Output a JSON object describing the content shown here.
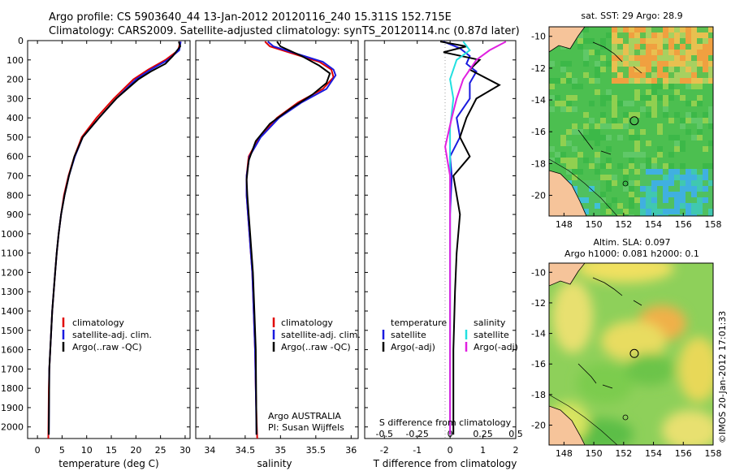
{
  "header": {
    "title_line1": "Argo profile: CS 5903640_44 13-Jan-2012 20120116_240 15.311S 152.715E",
    "title_line2": "Climatology: CARS2009. Satellite-adjusted climatology: synTS_20120114.nc (0.87d later)"
  },
  "watermark": "©IMOS 20-Jan-2012 17:01:33",
  "colors": {
    "climatology": "#e00000",
    "satellite": "#1a1adf",
    "argo": "#000000",
    "cyan": "#22e0e0",
    "magenta": "#e020e0",
    "land": "#f6c49a"
  },
  "chart_data": [
    {
      "type": "line",
      "id": "temperature",
      "xlabel": "temperature (deg C)",
      "xlim": [
        -2,
        31
      ],
      "xticks": [
        0,
        5,
        10,
        15,
        20,
        25,
        30
      ],
      "ylim": [
        0,
        2060
      ],
      "yticks": [
        0,
        100,
        200,
        300,
        400,
        500,
        600,
        700,
        800,
        900,
        1000,
        1100,
        1200,
        1300,
        1400,
        1500,
        1600,
        1700,
        1800,
        1900,
        2000
      ],
      "legend": [
        "climatology",
        "satellite-adj. clim.",
        "Argo(..raw -QC)"
      ],
      "series": [
        {
          "name": "climatology",
          "color": "#e00000",
          "x": [
            29.0,
            28.6,
            26.0,
            22.5,
            19.5,
            15.5,
            12.0,
            9.0,
            7.5,
            6.3,
            5.4,
            4.8,
            4.3,
            3.9,
            3.6,
            3.3,
            3.0,
            2.8,
            2.6,
            2.4,
            2.3,
            2.2
          ],
          "y": [
            5,
            50,
            100,
            150,
            200,
            300,
            400,
            500,
            600,
            700,
            800,
            900,
            1000,
            1100,
            1200,
            1300,
            1400,
            1500,
            1600,
            1700,
            1800,
            2060
          ]
        },
        {
          "name": "satellite-adj. clim.",
          "color": "#1a1adf",
          "x": [
            29.1,
            28.8,
            26.5,
            23.0,
            20.0,
            16.0,
            12.5,
            9.2,
            7.6,
            6.4,
            5.5,
            4.8,
            4.3,
            3.9,
            3.6,
            3.3,
            3.0,
            2.8,
            2.6,
            2.4,
            2.3
          ],
          "y": [
            5,
            50,
            100,
            150,
            200,
            300,
            400,
            500,
            600,
            700,
            800,
            900,
            1000,
            1100,
            1200,
            1300,
            1400,
            1500,
            1600,
            1700,
            2040
          ]
        },
        {
          "name": "Argo(..raw -QC)",
          "color": "#000000",
          "x": [
            28.7,
            29.0,
            27.5,
            26.0,
            23.0,
            20.5,
            16.0,
            12.5,
            9.2,
            7.5,
            6.4,
            5.5,
            4.8,
            4.3,
            3.9,
            3.6,
            3.3,
            3.0,
            2.8,
            2.6,
            2.4,
            2.3
          ],
          "y": [
            5,
            30,
            80,
            120,
            160,
            200,
            300,
            400,
            500,
            600,
            700,
            800,
            900,
            1000,
            1100,
            1200,
            1300,
            1400,
            1500,
            1600,
            1700,
            2040
          ]
        }
      ]
    },
    {
      "type": "line",
      "id": "salinity",
      "xlabel": "salinity",
      "xlim": [
        33.8,
        36.1
      ],
      "xticks": [
        34,
        34.5,
        35,
        35.5,
        36
      ],
      "ylim": [
        0,
        2060
      ],
      "legend": [
        "climatology",
        "satellite-adj. clim.",
        "Argo(..raw -QC)"
      ],
      "series": [
        {
          "name": "climatology",
          "color": "#e00000",
          "x": [
            34.78,
            34.85,
            35.2,
            35.55,
            35.72,
            35.75,
            35.6,
            35.25,
            34.95,
            34.7,
            34.55,
            34.52,
            34.52,
            34.54,
            34.56,
            34.58,
            34.6,
            34.62,
            34.64,
            34.65,
            34.66,
            34.67
          ],
          "y": [
            5,
            30,
            70,
            110,
            150,
            190,
            250,
            320,
            400,
            500,
            600,
            700,
            800,
            900,
            1000,
            1100,
            1200,
            1400,
            1600,
            1800,
            1950,
            2060
          ]
        },
        {
          "name": "satellite-adj. clim.",
          "color": "#1a1adf",
          "x": [
            34.82,
            34.9,
            35.25,
            35.6,
            35.75,
            35.78,
            35.65,
            35.3,
            34.98,
            34.72,
            34.56,
            34.52,
            34.52,
            34.54,
            34.56,
            34.58,
            34.6,
            34.62,
            34.64,
            34.65,
            34.66
          ],
          "y": [
            5,
            30,
            70,
            110,
            150,
            180,
            250,
            320,
            400,
            500,
            600,
            700,
            800,
            900,
            1000,
            1100,
            1200,
            1400,
            1600,
            1800,
            2040
          ]
        },
        {
          "name": "Argo(..raw -QC)",
          "color": "#000000",
          "x": [
            34.95,
            35.0,
            35.3,
            35.55,
            35.7,
            35.65,
            35.45,
            35.15,
            34.85,
            34.65,
            34.55,
            34.52,
            34.53,
            34.55,
            34.57,
            34.59,
            34.61,
            34.63,
            34.65,
            34.66
          ],
          "y": [
            5,
            30,
            80,
            130,
            170,
            220,
            280,
            350,
            430,
            520,
            620,
            720,
            800,
            900,
            1000,
            1100,
            1200,
            1400,
            1600,
            2040
          ]
        }
      ],
      "annotation_line1": "Argo AUSTRALIA",
      "annotation_line2": "PI: Susan Wijffels"
    },
    {
      "type": "line",
      "id": "difference",
      "xlabel": "T difference from climatology",
      "xlabel_top": "S difference from climatology",
      "xlim": [
        -2.6,
        2.0
      ],
      "xticks": [
        -2,
        -1,
        0,
        1,
        2
      ],
      "sticks": [
        "-0.5",
        "-0.25",
        "0",
        "0.25",
        "0.5"
      ],
      "sticks_at": [
        -2,
        -1,
        0,
        1,
        2
      ],
      "ylim": [
        0,
        2060
      ],
      "legend_temperature": {
        "title": "temperature",
        "satellite": "satellite",
        "argo": "Argo(-adj)"
      },
      "legend_salinity": {
        "title": "salinity",
        "satellite": "satellite",
        "argo": "Argo(-adj)"
      },
      "series": [
        {
          "name": "T satellite",
          "color": "#1a1adf",
          "x": [
            -0.2,
            0.3,
            0.6,
            0.5,
            0.8,
            0.6,
            0.6,
            0.2,
            0.3,
            0.0,
            0.05,
            0.0,
            0.0,
            0.0,
            0.0,
            0.0
          ],
          "y": [
            5,
            40,
            80,
            120,
            160,
            220,
            300,
            400,
            500,
            600,
            700,
            900,
            1100,
            1300,
            1600,
            2040
          ]
        },
        {
          "name": "T Argo(-adj)",
          "color": "#000000",
          "x": [
            -0.3,
            0.5,
            -0.2,
            0.9,
            0.6,
            1.5,
            0.8,
            0.5,
            0.3,
            0.6,
            0.1,
            0.3,
            0.2,
            0.15,
            0.1,
            0.1
          ],
          "y": [
            5,
            30,
            60,
            100,
            150,
            230,
            300,
            400,
            500,
            600,
            700,
            900,
            1100,
            1300,
            1600,
            2040
          ]
        },
        {
          "name": "S satellite",
          "color": "#22e0e0",
          "x": [
            0.4,
            0.6,
            0.2,
            0.0,
            0.1,
            0.0,
            0.0,
            0.0,
            0.0,
            0.0,
            0.0,
            0.0
          ],
          "y": [
            5,
            50,
            100,
            200,
            300,
            450,
            600,
            800,
            1000,
            1300,
            1600,
            2040
          ]
        },
        {
          "name": "S Argo(-adj)",
          "color": "#e020e0",
          "x": [
            1.7,
            1.2,
            0.8,
            0.4,
            0.2,
            0.05,
            -0.15,
            0.0,
            0.0,
            0.0,
            0.0,
            0.0
          ],
          "y": [
            5,
            50,
            100,
            200,
            300,
            400,
            550,
            700,
            900,
            1200,
            1600,
            2040
          ]
        }
      ]
    },
    {
      "type": "heatmap",
      "id": "sst",
      "title": "sat. SST: 29 Argo: 28.9",
      "xticks": [
        148,
        150,
        152,
        154,
        156,
        158
      ],
      "yticks": [
        -10,
        -12,
        -14,
        -16,
        -18,
        -20
      ],
      "profile_marker": {
        "lon": 152.715,
        "lat": -15.311
      }
    },
    {
      "type": "heatmap",
      "id": "sla",
      "title_line1": "Altim. SLA: 0.097",
      "title_line2": "Argo h1000: 0.081 h2000: 0.1",
      "xticks": [
        148,
        150,
        152,
        154,
        156,
        158
      ],
      "yticks": [
        -10,
        -12,
        -14,
        -16,
        -18,
        -20
      ],
      "profile_marker": {
        "lon": 152.715,
        "lat": -15.311
      }
    }
  ]
}
